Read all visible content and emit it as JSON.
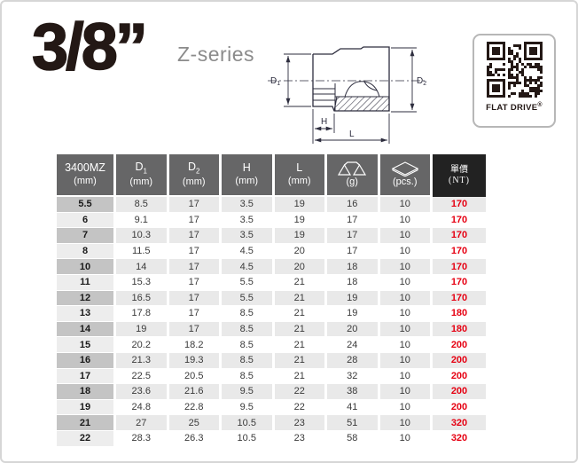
{
  "page": {
    "title": "3/8”",
    "series": "Z-series"
  },
  "qr": {
    "label": "FLAT DRIVE",
    "reg_mark": "®"
  },
  "diagram": {
    "d1": {
      "main": "D",
      "sub": "1"
    },
    "d2": {
      "main": "D",
      "sub": "2"
    },
    "h": "H",
    "l": "L"
  },
  "colors": {
    "price_red": "#e60012",
    "header_gray": "#666667",
    "header_black": "#222222",
    "line_navy": "#2d2d3e"
  },
  "table": {
    "header": [
      {
        "main": "3400MZ",
        "unit": "(mm)"
      },
      {
        "main": "D",
        "sub": "1",
        "unit": "(mm)"
      },
      {
        "main": "D",
        "sub": "2",
        "unit": "(mm)"
      },
      {
        "main": "H",
        "unit": "(mm)"
      },
      {
        "main": "L",
        "unit": "(mm)"
      },
      {
        "icon": "scale-icon",
        "unit": "(g)"
      },
      {
        "icon": "box-icon",
        "unit": "(pcs.)"
      },
      {
        "main": "單價",
        "unit": "(NT)",
        "accent": "black"
      }
    ],
    "rows": [
      [
        "5.5",
        "8.5",
        "17",
        "3.5",
        "19",
        "16",
        "10",
        "170"
      ],
      [
        "6",
        "9.1",
        "17",
        "3.5",
        "19",
        "17",
        "10",
        "170"
      ],
      [
        "7",
        "10.3",
        "17",
        "3.5",
        "19",
        "17",
        "10",
        "170"
      ],
      [
        "8",
        "11.5",
        "17",
        "4.5",
        "20",
        "17",
        "10",
        "170"
      ],
      [
        "10",
        "14",
        "17",
        "4.5",
        "20",
        "18",
        "10",
        "170"
      ],
      [
        "11",
        "15.3",
        "17",
        "5.5",
        "21",
        "18",
        "10",
        "170"
      ],
      [
        "12",
        "16.5",
        "17",
        "5.5",
        "21",
        "19",
        "10",
        "170"
      ],
      [
        "13",
        "17.8",
        "17",
        "8.5",
        "21",
        "19",
        "10",
        "180"
      ],
      [
        "14",
        "19",
        "17",
        "8.5",
        "21",
        "20",
        "10",
        "180"
      ],
      [
        "15",
        "20.2",
        "18.2",
        "8.5",
        "21",
        "24",
        "10",
        "200"
      ],
      [
        "16",
        "21.3",
        "19.3",
        "8.5",
        "21",
        "28",
        "10",
        "200"
      ],
      [
        "17",
        "22.5",
        "20.5",
        "8.5",
        "21",
        "32",
        "10",
        "200"
      ],
      [
        "18",
        "23.6",
        "21.6",
        "9.5",
        "22",
        "38",
        "10",
        "200"
      ],
      [
        "19",
        "24.8",
        "22.8",
        "9.5",
        "22",
        "41",
        "10",
        "200"
      ],
      [
        "21",
        "27",
        "25",
        "10.5",
        "23",
        "51",
        "10",
        "320"
      ],
      [
        "22",
        "28.3",
        "26.3",
        "10.5",
        "23",
        "58",
        "10",
        "320"
      ]
    ]
  }
}
